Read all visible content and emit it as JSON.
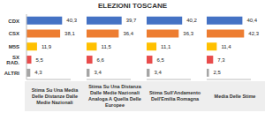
{
  "title": "ELEZIONI TOSCANE",
  "chart_data": [
    {
      "type": "bar",
      "orientation": "horizontal",
      "title": "Stima Su Una Media Delle Distanze Dalle Medie Nazionali",
      "categories": [
        "CDX",
        "CSX",
        "M5S",
        "SX RAD.",
        "ALTRI"
      ],
      "values": [
        40.3,
        38.1,
        11.9,
        5.5,
        4.3
      ],
      "value_labels": [
        "40,3",
        "38,1",
        "11,9",
        "5,5",
        "4,3"
      ],
      "colors": [
        "#4472c4",
        "#ed7d31",
        "#ffc000",
        "#e84c4c",
        "#a5a5a5"
      ],
      "xlim": [
        0,
        50
      ],
      "data_labels": true,
      "tick_labels": "y"
    },
    {
      "type": "bar",
      "orientation": "horizontal",
      "title": "Stima Su Una Distanza Dalle Medie Nazionali Analoga A Quella Delle Europee",
      "categories": [
        "CDX",
        "CSX",
        "M5S",
        "SX RAD.",
        "ALTRI"
      ],
      "values": [
        39.7,
        36.4,
        11.5,
        6.6,
        3.4
      ],
      "value_labels": [
        "39,7",
        "36,4",
        "11,5",
        "6,6",
        "3,4"
      ],
      "colors": [
        "#4472c4",
        "#ed7d31",
        "#ffc000",
        "#e84c4c",
        "#a5a5a5"
      ],
      "xlim": [
        0,
        50
      ],
      "data_labels": true,
      "tick_labels": false
    },
    {
      "type": "bar",
      "orientation": "horizontal",
      "title": "Stima Sull'Andamento Dell'Emilia Romagna",
      "categories": [
        "CDX",
        "CSX",
        "M5S",
        "SX RAD.",
        "ALTRI"
      ],
      "values": [
        40.2,
        36.3,
        11.1,
        6.5,
        3.4
      ],
      "value_labels": [
        "40,2",
        "36,3",
        "11,1",
        "6,5",
        "3,4"
      ],
      "colors": [
        "#4472c4",
        "#ed7d31",
        "#ffc000",
        "#e84c4c",
        "#a5a5a5"
      ],
      "xlim": [
        0,
        50
      ],
      "data_labels": true,
      "tick_labels": false
    },
    {
      "type": "bar",
      "orientation": "horizontal",
      "title": "Media Delle Stime",
      "categories": [
        "CDX",
        "CSX",
        "M5S",
        "SX RAD.",
        "ALTRI"
      ],
      "values": [
        40.4,
        42.3,
        11.4,
        7.3,
        2.5
      ],
      "value_labels": [
        "40,4",
        "42,3",
        "11,4",
        "7,3",
        "2,5"
      ],
      "colors": [
        "#4472c4",
        "#ed7d31",
        "#ffc000",
        "#e84c4c",
        "#a5a5a5"
      ],
      "xlim": [
        0,
        50
      ],
      "data_labels": true,
      "tick_labels": false
    }
  ]
}
